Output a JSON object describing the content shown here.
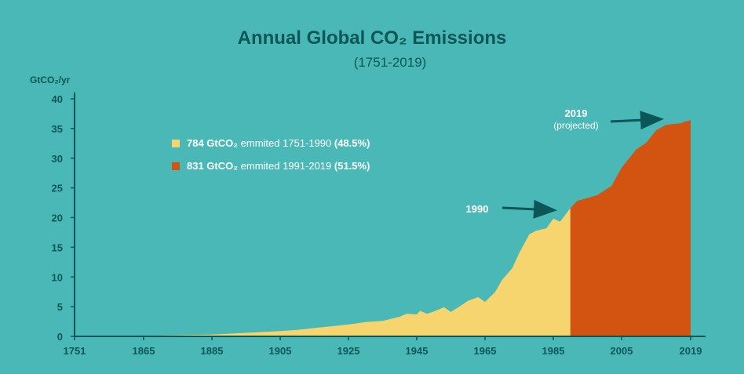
{
  "chart_data": {
    "type": "area",
    "title": "Annual Global CO₂ Emissions",
    "subtitle": "(1751-2019)",
    "ylabel": "GtCO₂/yr",
    "xlabel": "",
    "ylim": [
      0,
      40
    ],
    "yticks": [
      "0",
      "5",
      "10",
      "15",
      "20",
      "25",
      "30",
      "35",
      "40"
    ],
    "xticks": [
      "1751",
      "1865",
      "1885",
      "1905",
      "1925",
      "1945",
      "1965",
      "1985",
      "2005",
      "2019"
    ],
    "grid": false,
    "legend_position": "top-left",
    "series": [
      {
        "label_bold": "784 GtCO₂",
        "label_text": " emmited 1751-1990 ",
        "label_pct": "(48.5%)",
        "color": "#f7d56e",
        "x": [
          1751,
          1865,
          1885,
          1895,
          1905,
          1910,
          1915,
          1920,
          1925,
          1930,
          1935,
          1940,
          1942,
          1945,
          1946,
          1948,
          1950,
          1953,
          1955,
          1958,
          1960,
          1963,
          1965,
          1968,
          1970,
          1973,
          1975,
          1978,
          1980,
          1983,
          1985,
          1987,
          1990
        ],
        "y": [
          0.01,
          0.1,
          0.3,
          0.6,
          0.9,
          1.1,
          1.4,
          1.7,
          2.0,
          2.4,
          2.6,
          3.3,
          3.8,
          3.7,
          4.3,
          3.8,
          4.2,
          4.9,
          4.1,
          5.2,
          6.0,
          6.6,
          5.8,
          7.5,
          9.5,
          11.5,
          14.0,
          17.2,
          17.8,
          18.2,
          19.8,
          19.3,
          21.6
        ]
      },
      {
        "label_bold": "831 GtCO₂",
        "label_text": " emmited 1991-2019 ",
        "label_pct": "(51.5%)",
        "color": "#d35411",
        "x": [
          1990,
          1992,
          1995,
          1998,
          2000,
          2002,
          2005,
          2008,
          2010,
          2012,
          2014,
          2016,
          2017,
          2018,
          2019
        ],
        "y": [
          21.6,
          22.8,
          23.3,
          23.8,
          24.6,
          25.3,
          28.4,
          31.5,
          32.6,
          34.7,
          35.6,
          35.8,
          35.9,
          36.2,
          36.4
        ]
      }
    ],
    "annotations": [
      {
        "label": "1990",
        "sub": ""
      },
      {
        "label": "2019",
        "sub": "(projected)"
      }
    ]
  }
}
